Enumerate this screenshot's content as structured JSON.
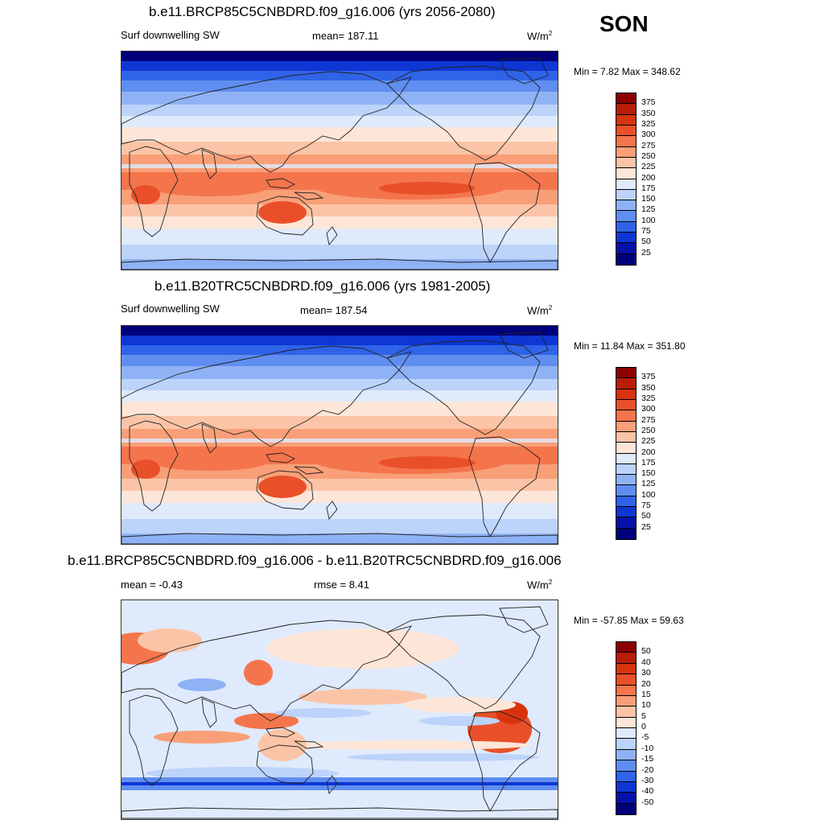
{
  "season": "SON",
  "panels": [
    {
      "title": "b.e11.BRCP85C5CNBDRD.f09_g16.006 (yrs 2056-2080)",
      "left_label": "Surf downwelling SW",
      "center_label": "mean= 187.11",
      "units_base": "W/m",
      "units_exp": "2",
      "minmax": "Min =   7.82 Max = 348.62",
      "colorbar": {
        "labels": [
          "375",
          "350",
          "325",
          "300",
          "275",
          "250",
          "225",
          "200",
          "175",
          "150",
          "125",
          "100",
          "75",
          "50",
          "25"
        ],
        "colors": [
          "#8b0000",
          "#b81d09",
          "#d8330f",
          "#e9502a",
          "#f4754c",
          "#f99f78",
          "#fcc4a6",
          "#fde6d8",
          "#dfeafc",
          "#bcd3fa",
          "#8fb2f5",
          "#5f8ef0",
          "#2f63e8",
          "#0d36d3",
          "#0511a8",
          "#00007a"
        ]
      },
      "style": "clim"
    },
    {
      "title": "b.e11.B20TRC5CNBDRD.f09_g16.006 (yrs 1981-2005)",
      "left_label": "Surf downwelling SW",
      "center_label": "mean= 187.54",
      "units_base": "W/m",
      "units_exp": "2",
      "minmax": "Min =  11.84 Max = 351.80",
      "colorbar": {
        "labels": [
          "375",
          "350",
          "325",
          "300",
          "275",
          "250",
          "225",
          "200",
          "175",
          "150",
          "125",
          "100",
          "75",
          "50",
          "25"
        ],
        "colors": [
          "#8b0000",
          "#b81d09",
          "#d8330f",
          "#e9502a",
          "#f4754c",
          "#f99f78",
          "#fcc4a6",
          "#fde6d8",
          "#dfeafc",
          "#bcd3fa",
          "#8fb2f5",
          "#5f8ef0",
          "#2f63e8",
          "#0d36d3",
          "#0511a8",
          "#00007a"
        ]
      },
      "style": "clim"
    },
    {
      "title": "b.e11.BRCP85C5CNBDRD.f09_g16.006 - b.e11.B20TRC5CNBDRD.f09_g16.006",
      "left_label": "mean =  -0.43",
      "center_label": "rmse =   8.41",
      "units_base": "W/m",
      "units_exp": "2",
      "minmax": "Min = -57.85 Max =  59.63",
      "colorbar": {
        "labels": [
          "50",
          "40",
          "30",
          "20",
          "15",
          "10",
          "5",
          "0",
          "-5",
          "-10",
          "-15",
          "-20",
          "-30",
          "-40",
          "-50"
        ],
        "colors": [
          "#8b0000",
          "#b81d09",
          "#d8330f",
          "#e9502a",
          "#f4754c",
          "#f99f78",
          "#fcc4a6",
          "#fde6d8",
          "#dfeafc",
          "#bcd3fa",
          "#8fb2f5",
          "#5f8ef0",
          "#2f63e8",
          "#0d36d3",
          "#0511a8",
          "#00007a"
        ]
      },
      "style": "diff"
    }
  ]
}
